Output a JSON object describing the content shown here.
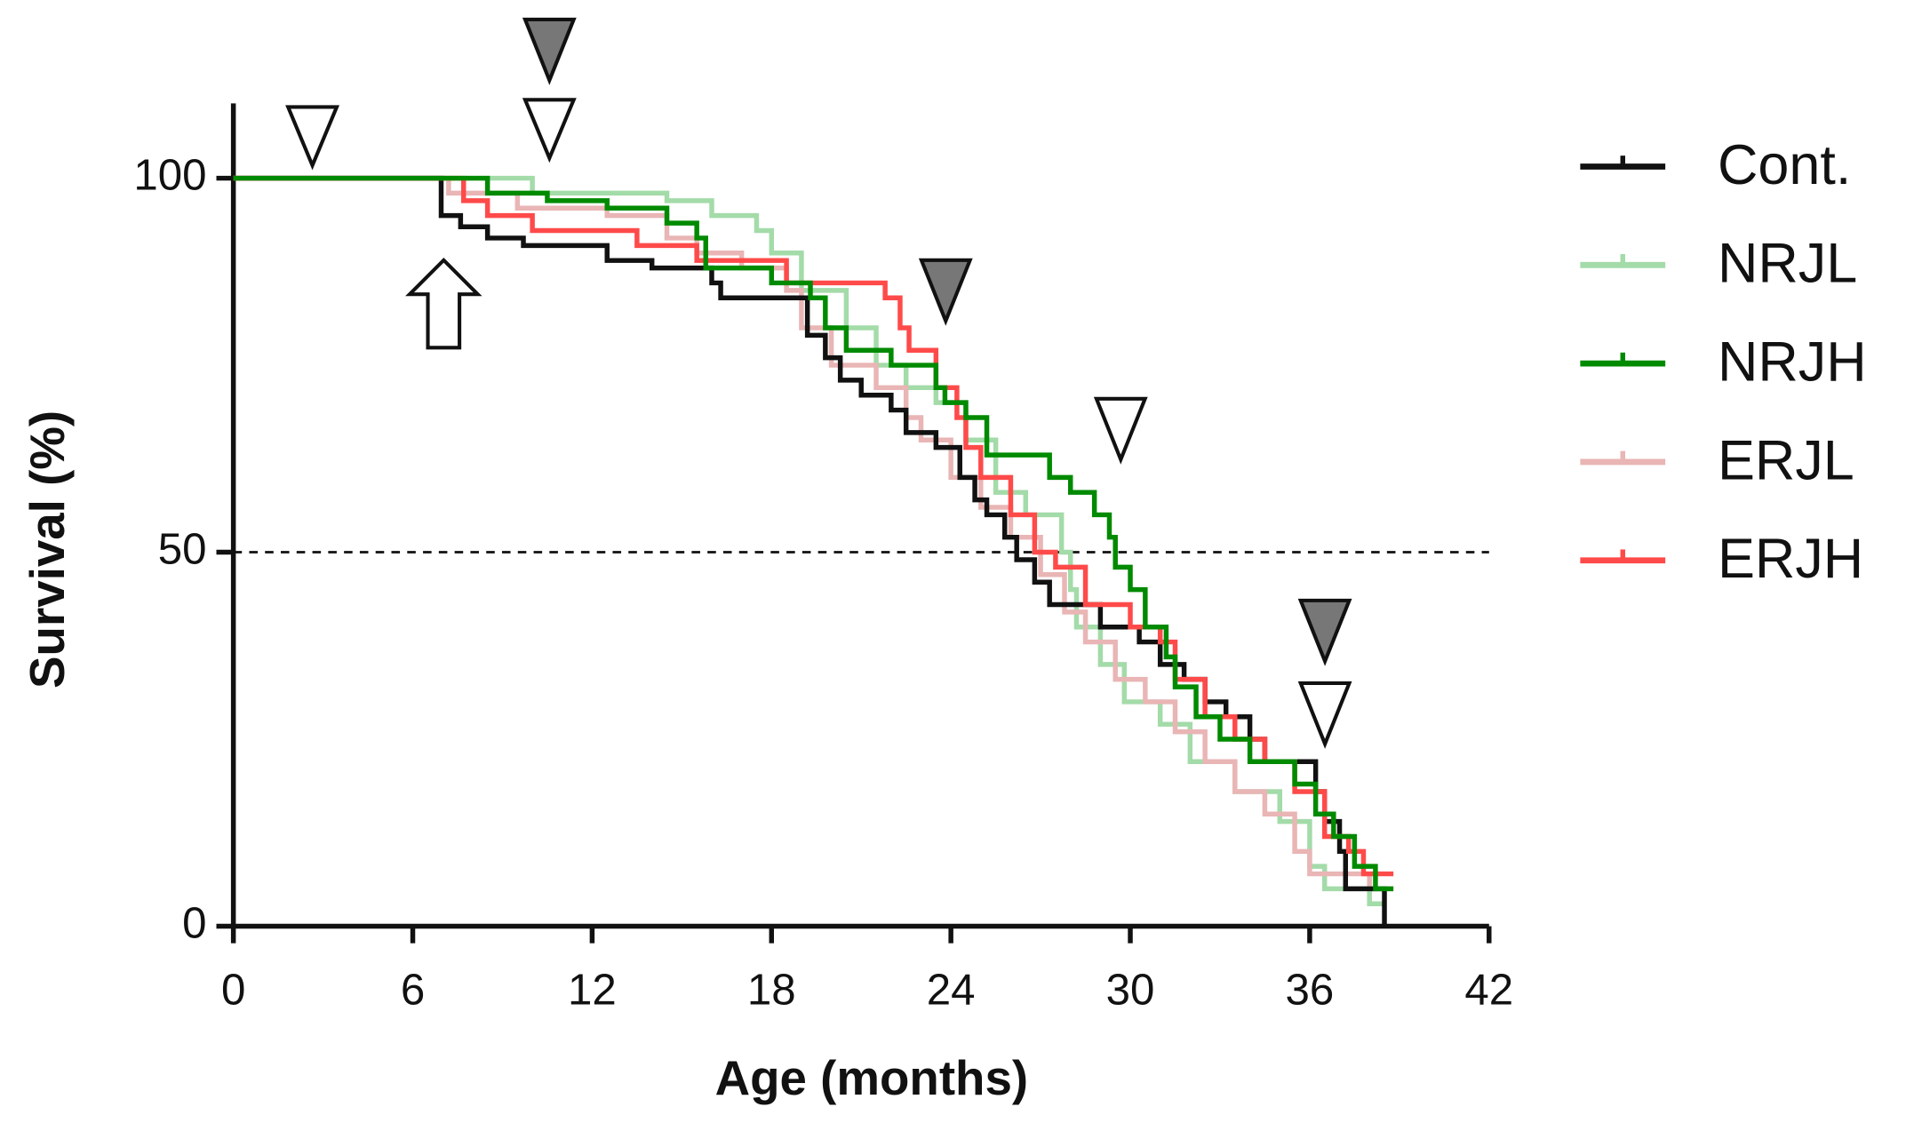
{
  "chart_data": {
    "type": "step",
    "x_label": "Age (months)",
    "y_label": "Survival (%)",
    "xlim": [
      0,
      42
    ],
    "xticks": [
      0,
      6,
      12,
      18,
      24,
      30,
      36,
      42
    ],
    "ylim": [
      0,
      110
    ],
    "yticks": [
      0,
      50,
      100
    ],
    "reference_line": 50,
    "series": [
      {
        "name": "Cont.",
        "color": "#111111",
        "x": [
          0,
          6.95,
          7.6,
          8.5,
          9.7,
          12.5,
          14,
          16,
          16.3,
          19.2,
          19.8,
          20.3,
          21,
          22,
          22.5,
          23.5,
          24.3,
          24.8,
          25.2,
          25.8,
          26.2,
          26.8,
          27.3,
          29,
          30.3,
          31,
          31.8,
          32.5,
          33.2,
          34,
          34.5,
          36.2,
          36.5,
          37,
          37.2,
          38.5
        ],
        "values": [
          100,
          95,
          93.5,
          92,
          91,
          89,
          88,
          86,
          84,
          79,
          76,
          73,
          71,
          69,
          66,
          64,
          60,
          57,
          55,
          52,
          49,
          46,
          43,
          40,
          38,
          35,
          33,
          30,
          28,
          25,
          22,
          18,
          14,
          10,
          5,
          0
        ]
      },
      {
        "name": "NRJL",
        "color": "#a3dba9",
        "x": [
          0,
          10,
          14.5,
          16,
          17.5,
          18,
          19,
          20.5,
          21.5,
          22.5,
          23.5,
          24.5,
          25.5,
          26.5,
          27.7,
          28,
          28.2,
          29,
          29.8,
          31,
          32,
          33.5,
          35,
          36,
          36.5,
          38,
          38.5
        ],
        "values": [
          100,
          98,
          97,
          95,
          93,
          90,
          85,
          80,
          75,
          72,
          70,
          65,
          58,
          55,
          50,
          45,
          40,
          35,
          30,
          27,
          22,
          18,
          14,
          8,
          5,
          3,
          3
        ]
      },
      {
        "name": "NRJH",
        "color": "#008a00",
        "x": [
          0,
          8.5,
          10.5,
          12.5,
          14.5,
          15.5,
          15.8,
          18,
          19.3,
          19.8,
          20.5,
          22,
          23.5,
          23.8,
          24.5,
          25.2,
          27.3,
          28,
          28.8,
          29.3,
          29.5,
          30,
          30.5,
          31.2,
          31.5,
          32.2,
          33,
          34,
          35.5,
          36.2,
          36.8,
          37.5,
          38.2,
          38.8
        ],
        "values": [
          100,
          98,
          97,
          96,
          94,
          92,
          88,
          86,
          84,
          80,
          77,
          75,
          72,
          70,
          68,
          63,
          60,
          58,
          55,
          52,
          48,
          45,
          40,
          36,
          32,
          28,
          25,
          22,
          19,
          15,
          12,
          8,
          5,
          5
        ]
      },
      {
        "name": "ERJL",
        "color": "#e9b5b5",
        "x": [
          0,
          7.2,
          9.5,
          12.5,
          14.5,
          15.5,
          17,
          18.5,
          19,
          20,
          21.5,
          22.5,
          23,
          24,
          25,
          26,
          27,
          27.8,
          28.5,
          29.5,
          30.5,
          31.5,
          32.5,
          33.5,
          34.5,
          35.5,
          36,
          38,
          38.8
        ],
        "values": [
          100,
          98,
          96,
          95,
          92,
          90,
          88,
          85,
          80,
          75,
          72,
          68,
          65,
          60,
          56,
          52,
          47,
          42,
          38,
          33,
          30,
          26,
          22,
          18,
          15,
          10,
          7,
          5,
          5
        ]
      },
      {
        "name": "ERJH",
        "color": "#ff4a4a",
        "x": [
          0,
          7.7,
          8.5,
          10,
          13.5,
          15.5,
          18.5,
          21.8,
          22.3,
          22.6,
          23.5,
          24.2,
          24.5,
          25,
          26,
          26.8,
          27.5,
          28.5,
          30,
          31,
          31.5,
          32.5,
          33.5,
          34.5,
          35.5,
          36.5,
          37.3,
          37.8,
          38.8
        ],
        "values": [
          100,
          97,
          95,
          93,
          91,
          89,
          86,
          84,
          80,
          77,
          72,
          68,
          64,
          60,
          55,
          50,
          48,
          43,
          40,
          38,
          33,
          28,
          25,
          22,
          18,
          12,
          10,
          7,
          7
        ]
      }
    ]
  }
}
